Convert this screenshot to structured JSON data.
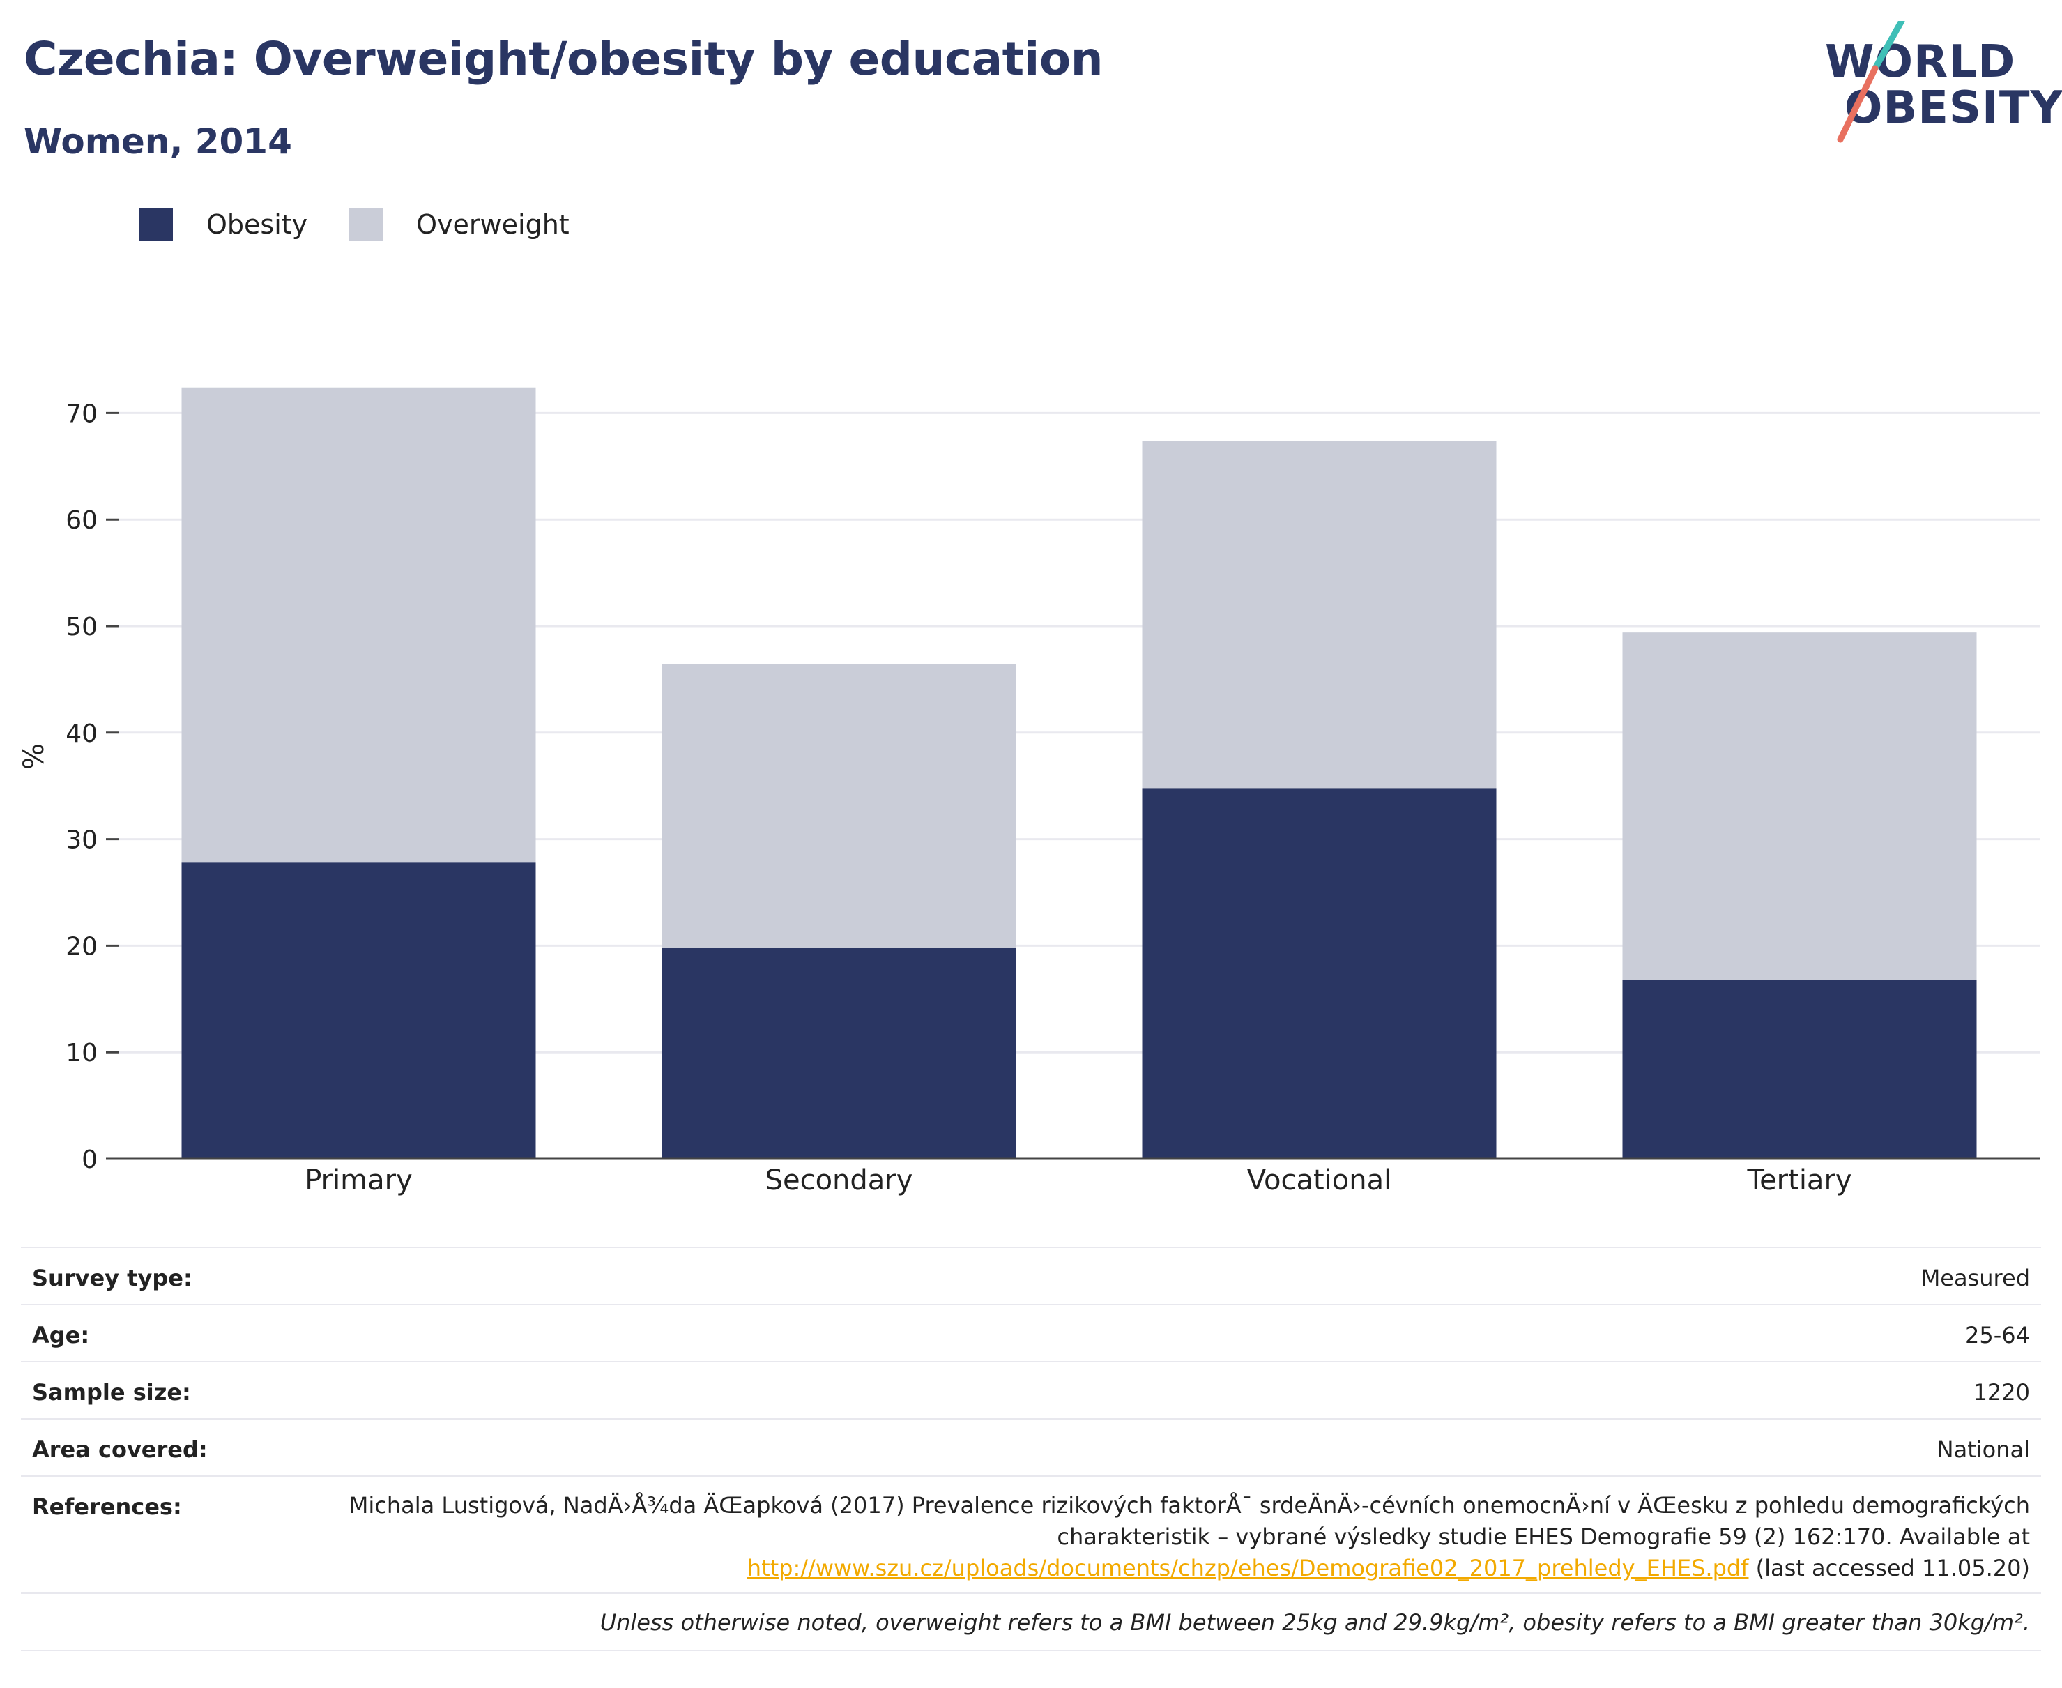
{
  "header": {
    "title": "Czechia: Overweight/obesity by education",
    "subtitle": "Women, 2014"
  },
  "logo": {
    "line1": "WORLD",
    "line2": "OBESITY"
  },
  "colors": {
    "obesity": "#2a3663",
    "overweight": "#cacdd8",
    "title": "#2a3663",
    "link": "#f2a900"
  },
  "legend": {
    "obesity": "Obesity",
    "overweight": "Overweight"
  },
  "chart_data": {
    "type": "bar",
    "stacked": true,
    "categories": [
      "Primary",
      "Secondary",
      "Vocational",
      "Tertiary"
    ],
    "series": [
      {
        "name": "Obesity",
        "values": [
          27.8,
          19.8,
          34.8,
          16.8
        ]
      },
      {
        "name": "Overweight",
        "values": [
          44.6,
          26.6,
          32.6,
          32.6
        ]
      }
    ],
    "ylabel": "%",
    "ylim": [
      0,
      72.4
    ],
    "yticks": [
      0,
      10,
      20,
      30,
      40,
      50,
      60,
      70
    ],
    "grid": true,
    "legend_position": "top-left"
  },
  "info": {
    "survey_type": {
      "label": "Survey type:",
      "value": "Measured"
    },
    "age": {
      "label": "Age:",
      "value": "25-64"
    },
    "sample_size": {
      "label": "Sample size:",
      "value": "1220"
    },
    "area_covered": {
      "label": "Area covered:",
      "value": "National"
    },
    "references": {
      "label": "References:",
      "text": "Michala Lustigová, NadÄ›Å¾da ÄŒapková (2017) Prevalence rizikových faktorÅ¯ srdeÄnÄ›-cévních onemocnÄ›ní v ÄŒesku z pohledu demografických charakteristik – vybrané výsledky studie EHES Demografie 59 (2) 162:170. Available at",
      "link": "http://www.szu.cz/uploads/documents/chzp/ehes/Demografie02_2017_prehledy_EHES.pdf",
      "suffix": "(last accessed 11.05.20)"
    },
    "note": "Unless otherwise noted, overweight refers to a BMI between 25kg and 29.9kg/m², obesity refers to a BMI greater than 30kg/m²."
  }
}
